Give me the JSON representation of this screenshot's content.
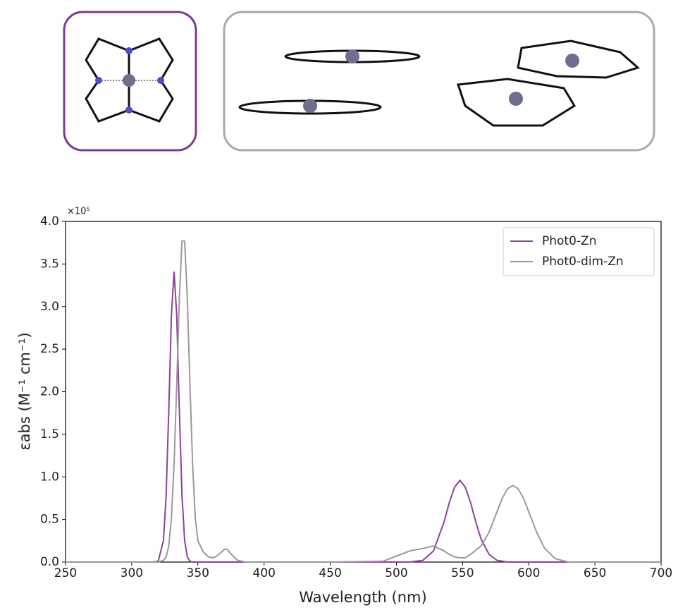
{
  "chart_data": {
    "type": "line",
    "x_label": "Wavelength (nm)",
    "y_label": "εabs (M⁻¹ cm⁻¹)",
    "y_multiplier": "×10⁵",
    "x": [
      250,
      300,
      316,
      320,
      324,
      326,
      328,
      330,
      332,
      334,
      336,
      338,
      340,
      342,
      344,
      346,
      348,
      350,
      354,
      358,
      362,
      366,
      370,
      372,
      376,
      380,
      386,
      400,
      450,
      490,
      500,
      510,
      520,
      528,
      536,
      540,
      544,
      548,
      552,
      556,
      560,
      564,
      570,
      576,
      580,
      584,
      588,
      592,
      596,
      600,
      606,
      612,
      620,
      630,
      650,
      700
    ],
    "series": [
      {
        "name": "Phot0-Zn",
        "color": "#8e3f9e",
        "values": [
          0,
          0,
          0,
          0.01,
          0.25,
          0.78,
          1.78,
          2.9,
          3.41,
          2.9,
          1.78,
          0.78,
          0.25,
          0.06,
          0.01,
          0,
          0,
          0,
          0,
          0,
          0,
          0,
          0,
          0,
          0,
          0,
          0,
          0,
          0,
          0,
          0,
          0,
          0.02,
          0.13,
          0.47,
          0.7,
          0.88,
          0.96,
          0.88,
          0.7,
          0.47,
          0.27,
          0.09,
          0.02,
          0.01,
          0,
          0,
          0,
          0,
          0,
          0,
          0,
          0,
          0,
          0,
          0
        ]
      },
      {
        "name": "Phot0-dim-Zn",
        "color": "#999999",
        "values": [
          0,
          0,
          0,
          0,
          0.02,
          0.06,
          0.19,
          0.52,
          1.15,
          2.08,
          3.1,
          3.77,
          3.77,
          3.1,
          2.08,
          1.15,
          0.52,
          0.25,
          0.12,
          0.06,
          0.05,
          0.09,
          0.15,
          0.15,
          0.08,
          0.02,
          0,
          0,
          0,
          0.01,
          0.07,
          0.13,
          0.16,
          0.19,
          0.13,
          0.09,
          0.06,
          0.05,
          0.05,
          0.09,
          0.14,
          0.19,
          0.35,
          0.59,
          0.75,
          0.86,
          0.9,
          0.86,
          0.75,
          0.59,
          0.35,
          0.16,
          0.04,
          0,
          0,
          0
        ]
      }
    ],
    "xlim": [
      250,
      700
    ],
    "xticks": [
      250,
      300,
      350,
      400,
      450,
      500,
      550,
      600,
      650,
      700
    ],
    "ylim": [
      0,
      4
    ],
    "yticks": [
      {
        "value": 0,
        "label": "0.0"
      },
      {
        "value": 0.5,
        "label": "0.5"
      },
      {
        "value": 1,
        "label": "1.0"
      },
      {
        "value": 1.5,
        "label": "1.5"
      },
      {
        "value": 2,
        "label": "2.0"
      },
      {
        "value": 2.5,
        "label": "2.5"
      },
      {
        "value": 3,
        "label": "3.0"
      },
      {
        "value": 3.5,
        "label": "3.5"
      },
      {
        "value": 4,
        "label": "4.0"
      }
    ],
    "legend": "upper right",
    "grid": false
  }
}
